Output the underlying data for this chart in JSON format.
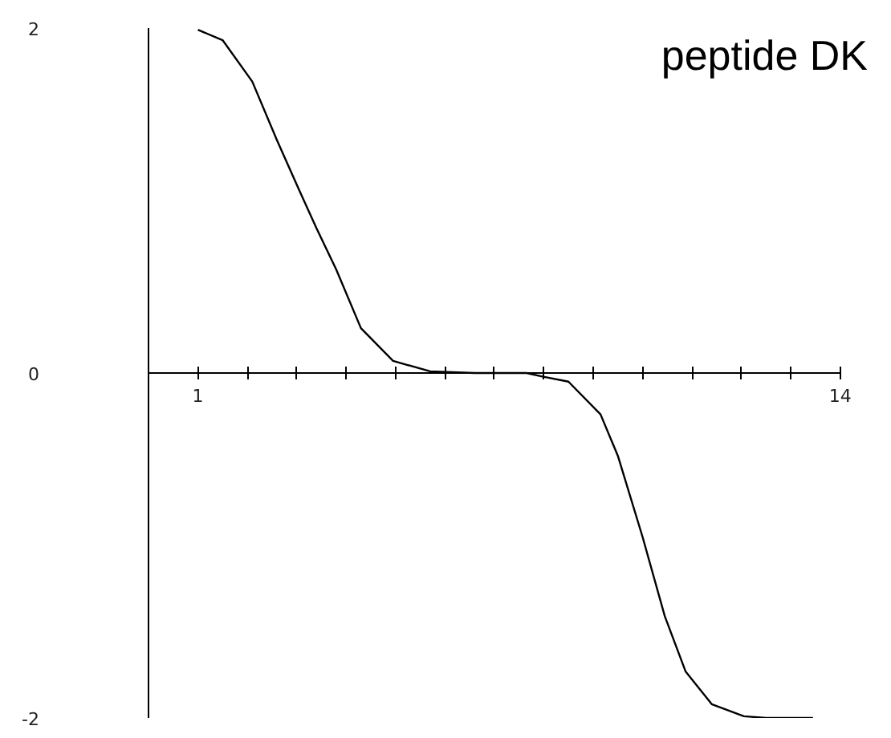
{
  "chart_data": {
    "type": "line",
    "title": "peptide DK",
    "x": [
      1,
      1.5,
      2.1,
      2.6,
      3.05,
      3.4,
      3.8,
      4.3,
      4.95,
      5.7,
      6.6,
      7.65,
      7.97,
      8.5,
      9.15,
      9.5,
      10.0,
      10.45,
      10.87,
      11.4,
      12.05,
      12.5,
      13.45
    ],
    "series": [
      {
        "color": "#000000",
        "values": [
          1.99,
          1.93,
          1.69,
          1.35,
          1.06,
          0.84,
          0.6,
          0.26,
          0.07,
          0.01,
          0.0,
          0.0,
          -0.02,
          -0.05,
          -0.24,
          -0.48,
          -0.95,
          -1.41,
          -1.73,
          -1.92,
          -1.99,
          -2.0,
          -2.0
        ]
      }
    ],
    "xlim": [
      0,
      14
    ],
    "ylim": [
      -2,
      2
    ],
    "xticks": [
      1,
      {
        "value": 2,
        "label": null
      },
      {
        "value": 3,
        "label": null
      },
      {
        "value": 4,
        "label": null
      },
      {
        "value": 5,
        "label": null
      },
      {
        "value": 6,
        "label": null
      },
      {
        "value": 7,
        "label": null
      },
      {
        "value": 8,
        "label": null
      },
      {
        "value": 9,
        "label": null
      },
      {
        "value": 10,
        "label": null
      },
      {
        "value": 11,
        "label": null
      },
      {
        "value": 12,
        "label": null
      },
      {
        "value": 13,
        "label": null
      },
      14
    ],
    "yticks": [
      -2,
      0,
      2
    ],
    "grid": false,
    "marker": "none",
    "line_style": "solid"
  }
}
